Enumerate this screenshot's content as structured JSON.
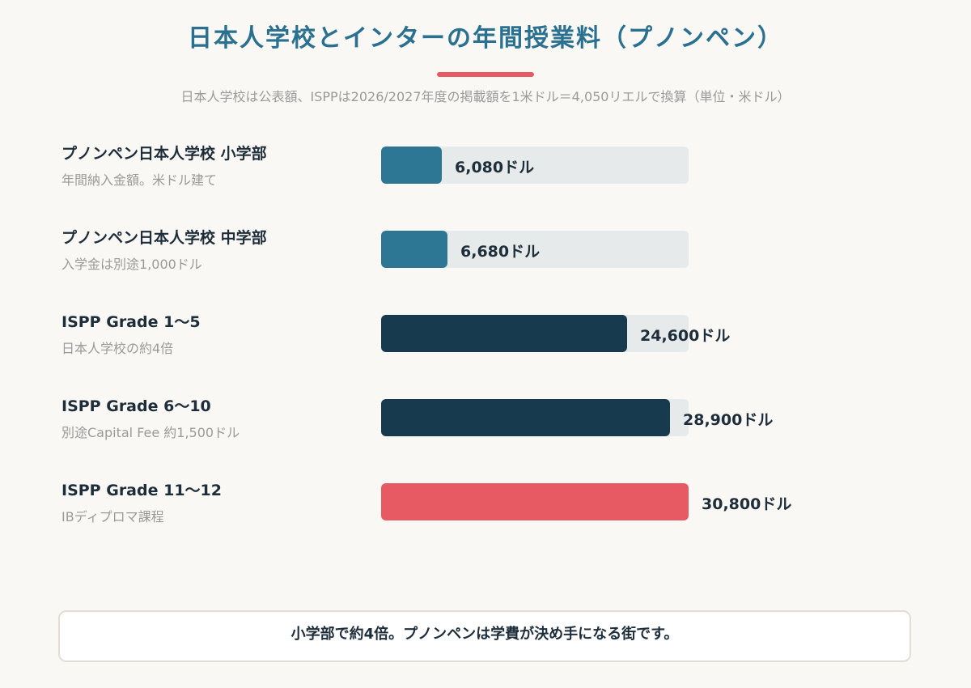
{
  "chart_data": {
    "type": "bar",
    "orientation": "horizontal",
    "title": "日本人学校とインターの年間授業料（プノンペン）",
    "subtitle": "日本人学校は公表額、ISPPは2026/2027年度の掲載額を1米ドル＝4,050リエルで換算（単位・米ドル）",
    "unit": "ドル",
    "xlim": [
      0,
      30800
    ],
    "categories": [
      {
        "label": "プノンペン日本人学校 小学部",
        "note": "年間納入金額。米ドル建て",
        "value": 6080,
        "value_label": "6,080ドル",
        "color": "#2e7794"
      },
      {
        "label": "プノンペン日本人学校 中学部",
        "note": "入学金は別途1,000ドル",
        "value": 6680,
        "value_label": "6,680ドル",
        "color": "#2e7794"
      },
      {
        "label": "ISPP Grade 1〜5",
        "note": "日本人学校の約4倍",
        "value": 24600,
        "value_label": "24,600ドル",
        "color": "#173a4e"
      },
      {
        "label": "ISPP Grade 6〜10",
        "note": "別途Capital Fee 約1,500ドル",
        "value": 28900,
        "value_label": "28,900ドル",
        "color": "#173a4e"
      },
      {
        "label": "ISPP Grade 11〜12",
        "note": "IBディプロマ課程",
        "value": 30800,
        "value_label": "30,800ドル",
        "color": "#e85a63"
      }
    ],
    "track_color": "#e6eaea",
    "accent_color": "#e85a63",
    "grid": false,
    "legend": "none"
  },
  "callout": {
    "text": "小学部で約4倍。プノンペンは学費が決め手になる街です。"
  }
}
